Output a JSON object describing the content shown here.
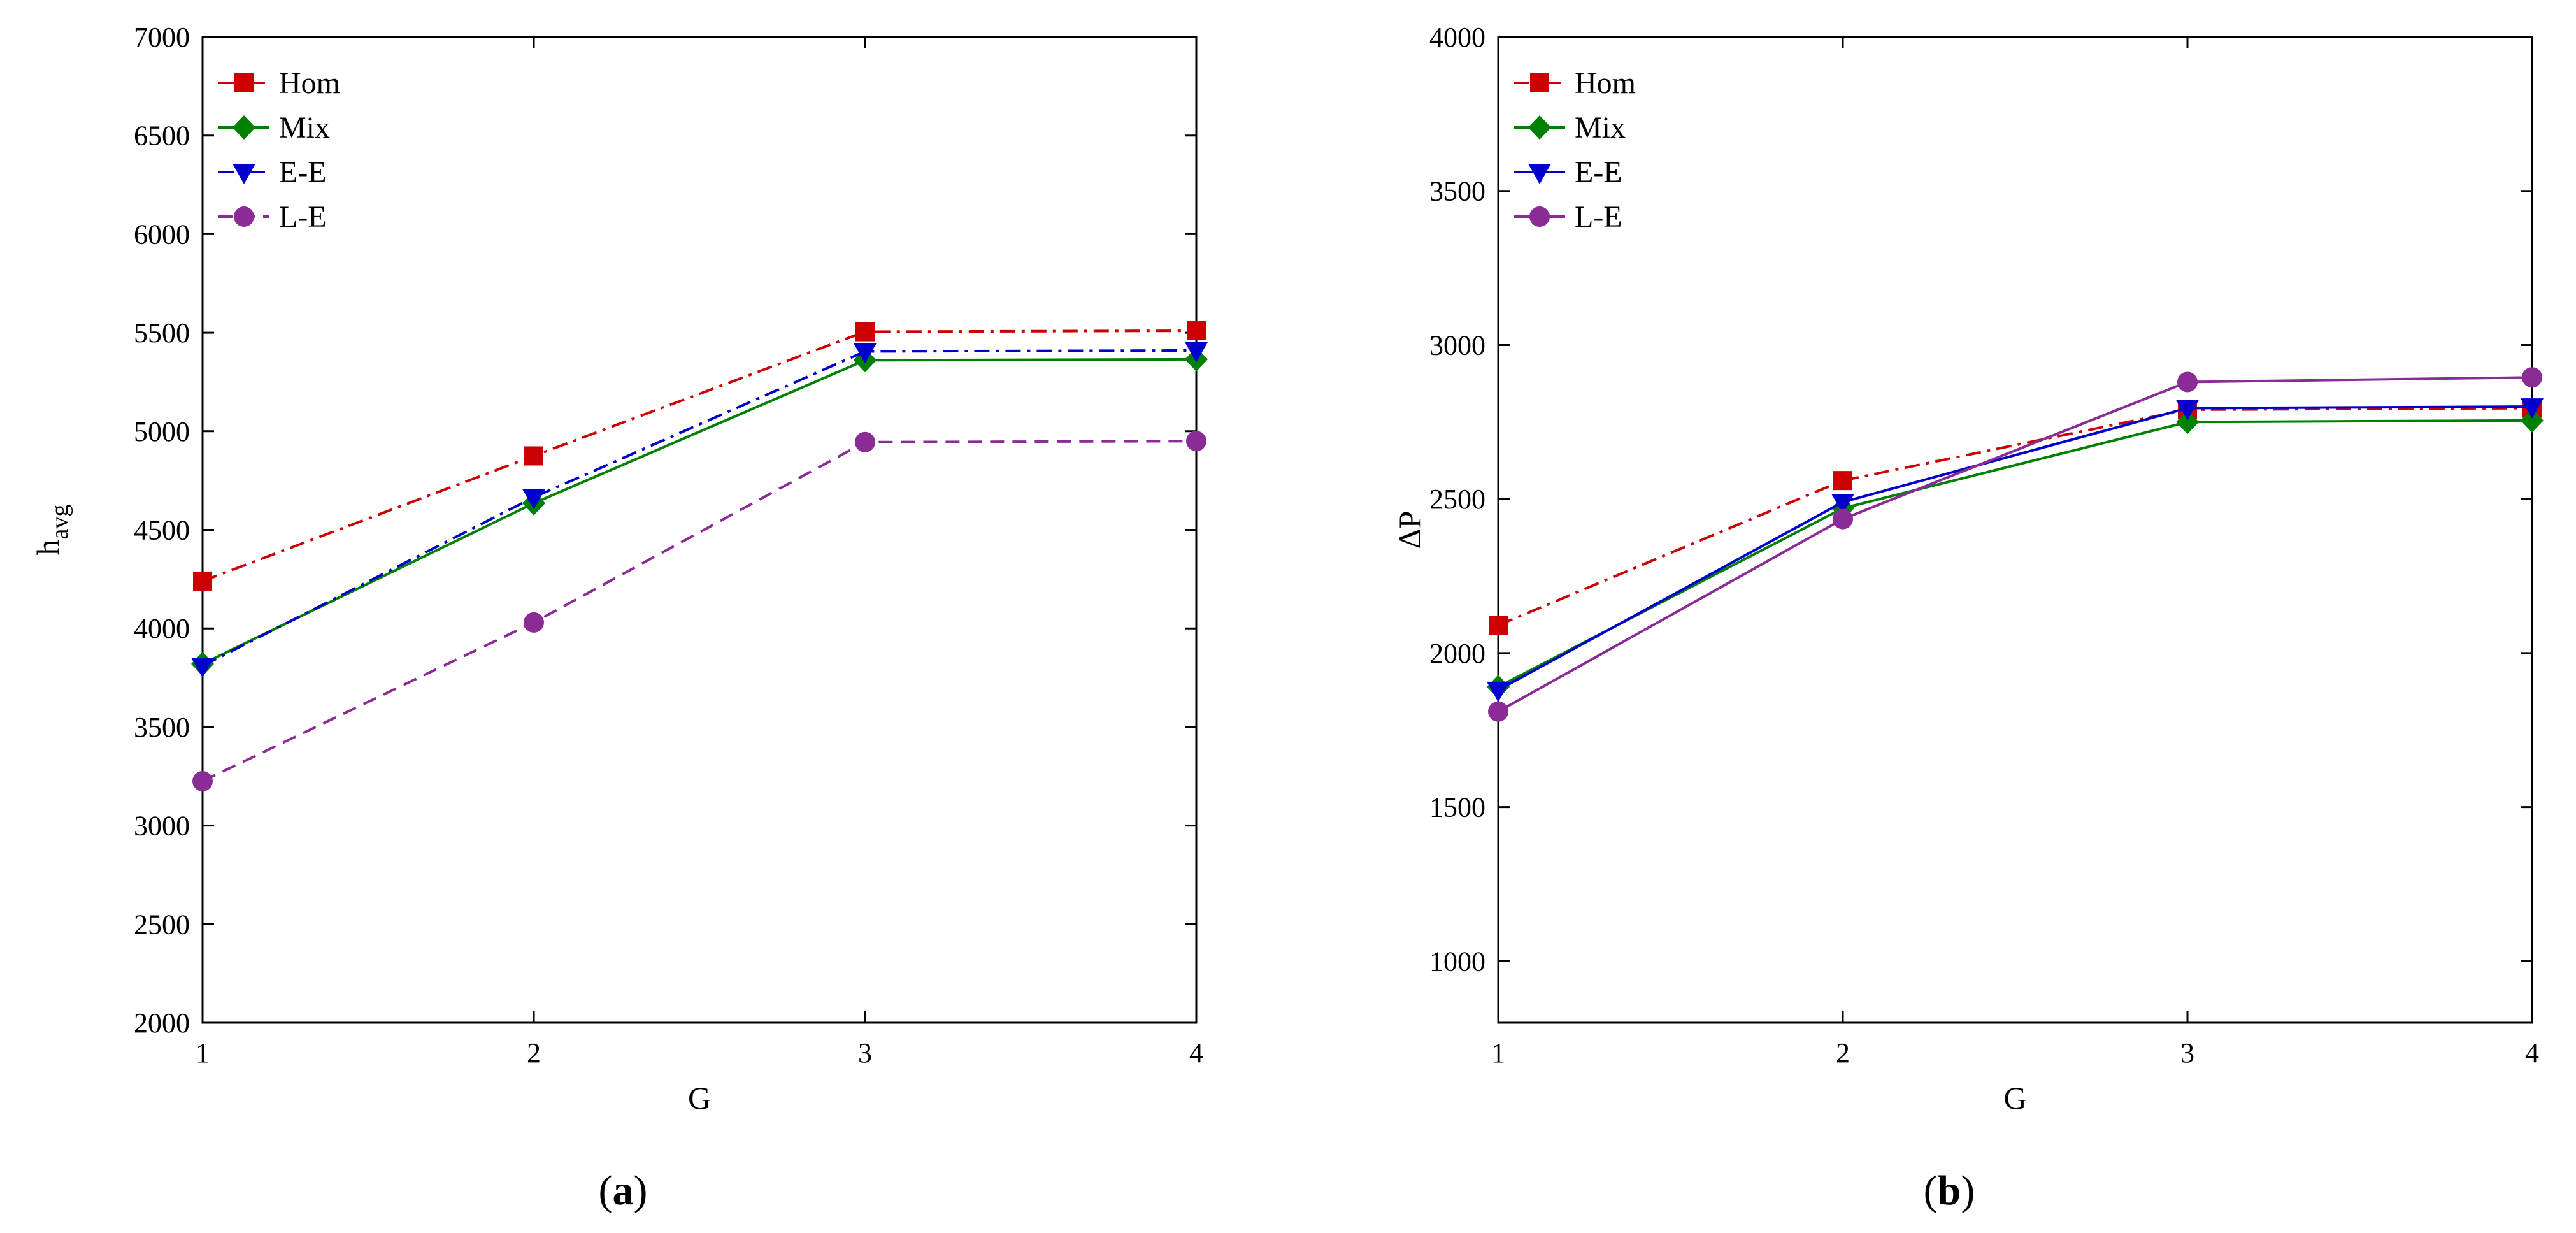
{
  "chart_data": [
    {
      "id": "a",
      "type": "line",
      "title": "",
      "xlabel": "G",
      "ylabel_main": "h",
      "ylabel_sub": "avg",
      "x": [
        1,
        2,
        3,
        4
      ],
      "xlim": [
        1,
        4
      ],
      "xticks": [
        "1",
        "2",
        "3",
        "4"
      ],
      "ylim": [
        2000,
        7000
      ],
      "yticks": [
        "2000",
        "2500",
        "3000",
        "3500",
        "4000",
        "4500",
        "5000",
        "5500",
        "6000",
        "6500",
        "7000"
      ],
      "grid": false,
      "legend_position": "top-left",
      "caption_open": "(",
      "caption_letter": "a",
      "caption_close": ")",
      "series": [
        {
          "name": "Hom",
          "values": [
            4240,
            4875,
            5505,
            5510
          ],
          "color": "#cc0000",
          "dash": "dashdot",
          "marker": "square"
        },
        {
          "name": "Mix",
          "values": [
            3820,
            4635,
            5360,
            5365
          ],
          "color": "#008000",
          "dash": "solid",
          "marker": "diamond"
        },
        {
          "name": "E-E",
          "values": [
            3810,
            4665,
            5405,
            5410
          ],
          "color": "#0000cc",
          "dash": "dashdot",
          "marker": "triangle-down"
        },
        {
          "name": "L-E",
          "values": [
            3225,
            4030,
            4945,
            4950
          ],
          "color": "#8b2b96",
          "dash": "dashed",
          "marker": "circle"
        }
      ]
    },
    {
      "id": "b",
      "type": "line",
      "title": "",
      "xlabel": "G",
      "ylabel_main": "ΔP",
      "ylabel_sub": "",
      "x": [
        1,
        2,
        3,
        4
      ],
      "xlim": [
        1,
        4
      ],
      "xticks": [
        "1",
        "2",
        "3",
        "4"
      ],
      "ylim": [
        800,
        4000
      ],
      "yticks": [
        "1000",
        "1500",
        "2000",
        "2500",
        "3000",
        "3500",
        "4000"
      ],
      "grid": false,
      "legend_position": "top-left",
      "caption_open": "(",
      "caption_letter": "b",
      "caption_close": ")",
      "series": [
        {
          "name": "Hom",
          "values": [
            2090,
            2560,
            2790,
            2795
          ],
          "color": "#cc0000",
          "dash": "dashdot",
          "marker": "square"
        },
        {
          "name": "Mix",
          "values": [
            1890,
            2470,
            2750,
            2755
          ],
          "color": "#008000",
          "dash": "solid",
          "marker": "diamond"
        },
        {
          "name": "E-E",
          "values": [
            1880,
            2490,
            2795,
            2800
          ],
          "color": "#0000cc",
          "dash": "solid",
          "marker": "triangle-down"
        },
        {
          "name": "L-E",
          "values": [
            1810,
            2435,
            2880,
            2895
          ],
          "color": "#8b2b96",
          "dash": "solid",
          "marker": "circle"
        }
      ]
    }
  ]
}
